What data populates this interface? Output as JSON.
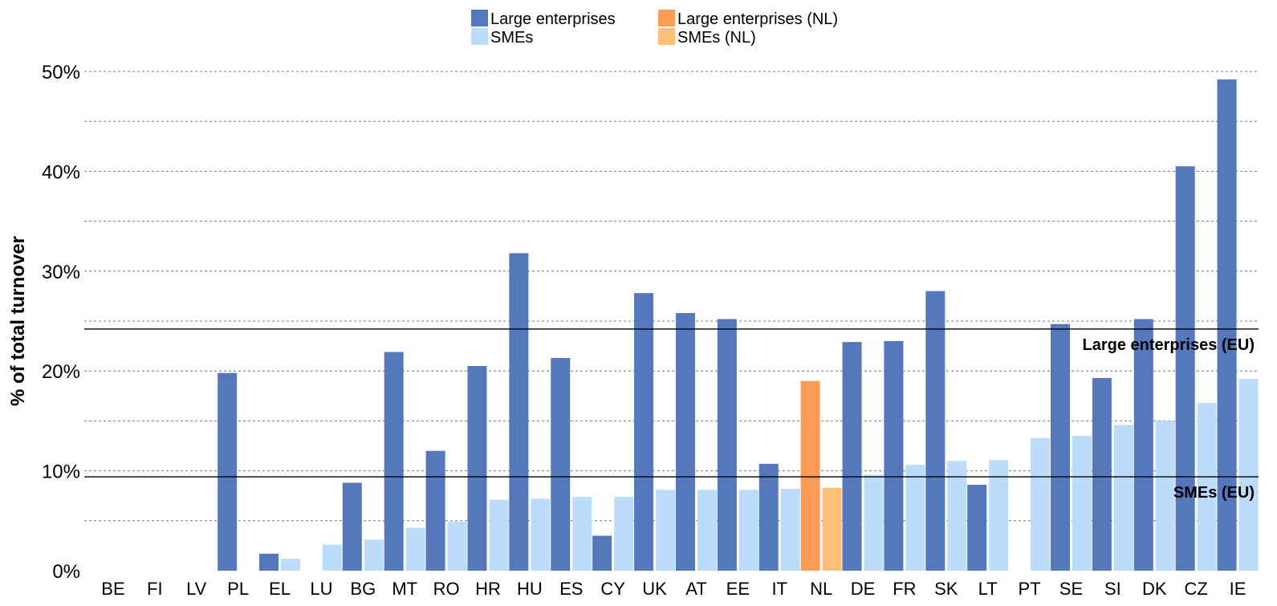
{
  "chart_data": {
    "type": "bar",
    "ylabel": "% of total turnover",
    "ylim": [
      0,
      50
    ],
    "y_tick_values": [
      0,
      10,
      20,
      30,
      40,
      50
    ],
    "y_tick_labels": [
      "0%",
      "10%",
      "20%",
      "30%",
      "40%",
      "50%"
    ],
    "grid": "horizontal dashed every 5%",
    "legend_position": "top-center",
    "categories": [
      "BE",
      "FI",
      "LV",
      "PL",
      "EL",
      "LU",
      "BG",
      "MT",
      "RO",
      "HR",
      "HU",
      "ES",
      "CY",
      "UK",
      "AT",
      "EE",
      "IT",
      "NL",
      "DE",
      "FR",
      "SK",
      "LT",
      "PT",
      "SE",
      "SI",
      "DK",
      "CZ",
      "IE"
    ],
    "series": [
      {
        "name": "Large enterprises",
        "color": "#5577bb",
        "values": [
          null,
          null,
          null,
          19.8,
          1.7,
          null,
          8.8,
          21.9,
          12.0,
          20.5,
          31.8,
          21.3,
          3.5,
          27.8,
          25.8,
          25.2,
          10.7,
          null,
          22.9,
          23.0,
          28.0,
          8.6,
          null,
          24.7,
          19.3,
          25.2,
          40.5,
          49.2
        ]
      },
      {
        "name": "SMEs",
        "color": "#bbdcfa",
        "values": [
          null,
          null,
          null,
          null,
          1.2,
          2.6,
          3.1,
          4.3,
          4.9,
          7.1,
          7.2,
          7.4,
          7.4,
          8.1,
          8.1,
          8.1,
          8.2,
          null,
          9.6,
          10.6,
          11.0,
          11.1,
          13.3,
          13.5,
          14.6,
          15.0,
          16.8,
          19.2
        ]
      },
      {
        "name": "Large enterprises (NL)",
        "color": "#ff9b55",
        "values": [
          null,
          null,
          null,
          null,
          null,
          null,
          null,
          null,
          null,
          null,
          null,
          null,
          null,
          null,
          null,
          null,
          null,
          19.0,
          null,
          null,
          null,
          null,
          null,
          null,
          null,
          null,
          null,
          null
        ]
      },
      {
        "name": "SMEs (NL)",
        "color": "#ffbf7a",
        "values": [
          null,
          null,
          null,
          null,
          null,
          null,
          null,
          null,
          null,
          null,
          null,
          null,
          null,
          null,
          null,
          null,
          null,
          8.3,
          null,
          null,
          null,
          null,
          null,
          null,
          null,
          null,
          null,
          null
        ]
      }
    ],
    "reference_lines": [
      {
        "label": "Large enterprises (EU)",
        "value": 24.2
      },
      {
        "label": "SMEs (EU)",
        "value": 9.4
      }
    ]
  }
}
